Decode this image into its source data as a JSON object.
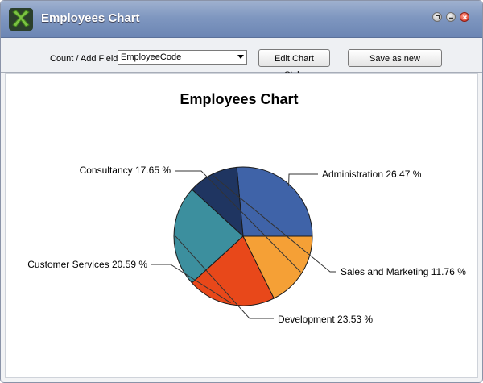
{
  "window": {
    "title": "Employees Chart",
    "icon": "green-x-logo-icon",
    "buttons": [
      "restore-icon",
      "minimize-icon",
      "close-icon"
    ]
  },
  "toolbar": {
    "count_label": "Count / Add Field :",
    "field_value": "EmployeeCode",
    "edit_label": "Edit Chart Style",
    "save_label": "Save as new message"
  },
  "chart_data": {
    "type": "pie",
    "title": "Employees Chart",
    "slices": [
      {
        "label": "Administration",
        "value": 26.47,
        "color": "#3f63a8"
      },
      {
        "label": "Sales and Marketing",
        "value": 11.76,
        "color": "#1f3561"
      },
      {
        "label": "Development",
        "value": 23.53,
        "color": "#3c8f9e"
      },
      {
        "label": "Customer Services",
        "value": 20.59,
        "color": "#e8481a"
      },
      {
        "label": "Consultancy",
        "value": 17.65,
        "color": "#f5a036"
      }
    ],
    "label_format": "{label} {value} %",
    "legend": "none"
  }
}
